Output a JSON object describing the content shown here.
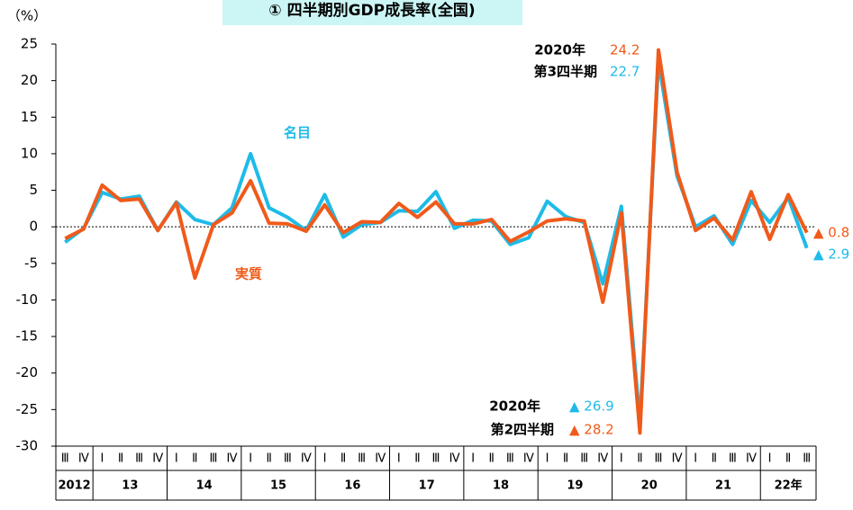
{
  "chart_data": {
    "type": "line",
    "title": "① 四半期別GDP成長率(全国)",
    "y_label": "（%）",
    "categories": [
      "Ⅲ",
      "Ⅳ",
      "Ⅰ",
      "Ⅱ",
      "Ⅲ",
      "Ⅳ",
      "Ⅰ",
      "Ⅱ",
      "Ⅲ",
      "Ⅳ",
      "Ⅰ",
      "Ⅱ",
      "Ⅲ",
      "Ⅳ",
      "Ⅰ",
      "Ⅱ",
      "Ⅲ",
      "Ⅳ",
      "Ⅰ",
      "Ⅱ",
      "Ⅲ",
      "Ⅳ",
      "Ⅰ",
      "Ⅱ",
      "Ⅲ",
      "Ⅳ",
      "Ⅰ",
      "Ⅱ",
      "Ⅲ",
      "Ⅳ",
      "Ⅰ",
      "Ⅱ",
      "Ⅲ",
      "Ⅳ",
      "Ⅰ",
      "Ⅱ",
      "Ⅲ",
      "Ⅳ",
      "Ⅰ",
      "Ⅱ",
      "Ⅲ"
    ],
    "years": [
      "2012",
      null,
      "13",
      null,
      null,
      null,
      "14",
      null,
      null,
      null,
      "15",
      null,
      null,
      null,
      "16",
      null,
      null,
      null,
      "17",
      null,
      null,
      null,
      "18",
      null,
      null,
      null,
      "19",
      null,
      null,
      null,
      "20",
      null,
      null,
      null,
      "21",
      null,
      null,
      null,
      "22年",
      null,
      null
    ],
    "series": [
      {
        "name": "名目",
        "color": "#1ebbe8",
        "values": [
          -2.1,
          -0.2,
          4.7,
          3.8,
          4.2,
          -0.5,
          3.4,
          1.0,
          0.3,
          2.6,
          10.0,
          2.6,
          1.3,
          -0.5,
          4.4,
          -1.4,
          0.3,
          0.6,
          2.2,
          2.1,
          4.8,
          -0.2,
          0.9,
          0.8,
          -2.4,
          -1.5,
          3.5,
          1.4,
          0.6,
          -7.8,
          2.8,
          -26.9,
          22.7,
          7.0,
          0.0,
          1.5,
          -2.4,
          3.6,
          0.6,
          4.0,
          -2.9
        ],
        "value_labels": [
          null,
          null,
          null,
          null,
          null,
          null,
          null,
          null,
          null,
          null,
          null,
          null,
          null,
          null,
          null,
          null,
          null,
          null,
          null,
          null,
          null,
          null,
          null,
          null,
          null,
          null,
          null,
          null,
          null,
          null,
          null,
          "▲ 26.9",
          "22.7",
          null,
          null,
          null,
          null,
          null,
          null,
          null,
          "▲ 2.9"
        ]
      },
      {
        "name": "実質",
        "color": "#f05a1a",
        "values": [
          -1.6,
          -0.3,
          5.7,
          3.6,
          3.8,
          -0.5,
          3.3,
          -7.0,
          0.3,
          1.9,
          6.3,
          0.5,
          0.4,
          -0.6,
          3.0,
          -0.8,
          0.7,
          0.6,
          3.2,
          1.3,
          3.4,
          0.4,
          0.4,
          1.0,
          -2.0,
          -0.7,
          0.8,
          1.1,
          0.8,
          -10.3,
          1.9,
          -28.2,
          24.2,
          7.5,
          -0.5,
          1.2,
          -1.8,
          4.8,
          -1.7,
          4.4,
          -0.8
        ],
        "value_labels": [
          null,
          null,
          null,
          null,
          null,
          null,
          null,
          null,
          null,
          null,
          null,
          null,
          null,
          null,
          null,
          null,
          null,
          null,
          null,
          null,
          null,
          null,
          null,
          null,
          null,
          null,
          null,
          null,
          null,
          null,
          null,
          "▲ 28.2",
          "24.2",
          null,
          null,
          null,
          null,
          null,
          null,
          null,
          "▲ 0.8"
        ]
      }
    ],
    "annotations": [
      "2020年",
      "第3四半期",
      "2020年",
      "第2四半期"
    ],
    "ylim": [
      -30,
      25
    ],
    "yticks": [
      -30,
      -25,
      -20,
      -15,
      -10,
      -5,
      0,
      5,
      10,
      15,
      20,
      25
    ],
    "zero_line": true
  }
}
